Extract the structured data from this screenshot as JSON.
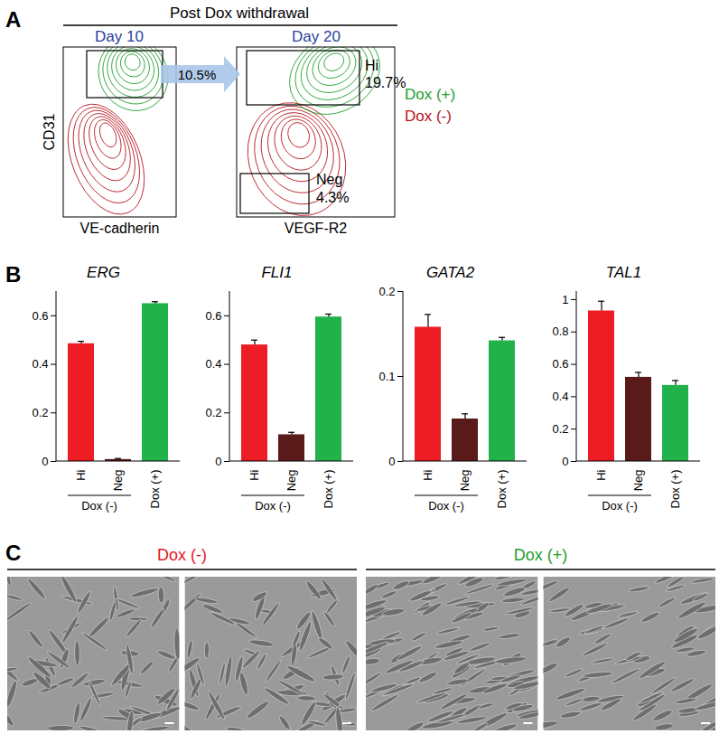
{
  "panel_labels": [
    "A",
    "B",
    "C"
  ],
  "panel_a": {
    "header": "Post Dox withdrawal",
    "days": [
      "Day 10",
      "Day 20"
    ],
    "day_color": "#2b3f9e",
    "arrow_label": "10.5%",
    "y_label": "CD31",
    "x_labels": [
      "VE-cadherin",
      "VEGF-R2"
    ],
    "gates": [
      {
        "name": "Hi",
        "label": "19.7%"
      },
      {
        "name": "Neg",
        "label": "4.3%"
      }
    ],
    "legend": [
      {
        "name": "Dox (+)",
        "color": "#1d9e2c"
      },
      {
        "name": "Dox (-)",
        "color": "#b5121b"
      }
    ]
  },
  "chart_data": [
    {
      "type": "bar",
      "title": "ERG",
      "categories": [
        "Hi",
        "Neg",
        "Dox (+)"
      ],
      "values": [
        0.485,
        0.008,
        0.65
      ],
      "errors": [
        0.01,
        0.004,
        0.008
      ],
      "colors": [
        "#ee1c24",
        "#5a1a1a",
        "#22b24c"
      ],
      "ylim": [
        0,
        0.7
      ],
      "yticks": [
        0,
        0.2,
        0.4,
        0.6
      ],
      "group_label": {
        "text": "Dox (-)",
        "categories": [
          "Hi",
          "Neg"
        ]
      }
    },
    {
      "type": "bar",
      "title": "FLI1",
      "categories": [
        "Hi",
        "Neg",
        "Dox (+)"
      ],
      "values": [
        0.48,
        0.11,
        0.595
      ],
      "errors": [
        0.02,
        0.01,
        0.012
      ],
      "colors": [
        "#ee1c24",
        "#5a1a1a",
        "#22b24c"
      ],
      "ylim": [
        0,
        0.7
      ],
      "yticks": [
        0,
        0.2,
        0.4,
        0.6
      ],
      "group_label": {
        "text": "Dox (-)",
        "categories": [
          "Hi",
          "Neg"
        ]
      }
    },
    {
      "type": "bar",
      "title": "GATA2",
      "categories": [
        "Hi",
        "Neg",
        "Dox (+)"
      ],
      "values": [
        0.158,
        0.05,
        0.142
      ],
      "errors": [
        0.015,
        0.006,
        0.004
      ],
      "colors": [
        "#ee1c24",
        "#5a1a1a",
        "#22b24c"
      ],
      "ylim": [
        0,
        0.2
      ],
      "yticks": [
        0,
        0.1,
        0.2
      ],
      "group_label": {
        "text": "Dox (-)",
        "categories": [
          "Hi",
          "Neg"
        ]
      }
    },
    {
      "type": "bar",
      "title": "TAL1",
      "categories": [
        "Hi",
        "Neg",
        "Dox (+)"
      ],
      "values": [
        0.93,
        0.52,
        0.47
      ],
      "errors": [
        0.06,
        0.03,
        0.03
      ],
      "colors": [
        "#ee1c24",
        "#5a1a1a",
        "#22b24c"
      ],
      "ylim": [
        0,
        1.05
      ],
      "yticks": [
        0,
        0.2,
        0.4,
        0.6,
        0.8,
        1
      ],
      "group_label": {
        "text": "Dox (-)",
        "categories": [
          "Hi",
          "Neg"
        ]
      }
    }
  ],
  "panel_c": {
    "groups": [
      {
        "title": "Dox (-)",
        "color": "#e3161f"
      },
      {
        "title": "Dox (+)",
        "color": "#1d9e2c"
      }
    ]
  }
}
